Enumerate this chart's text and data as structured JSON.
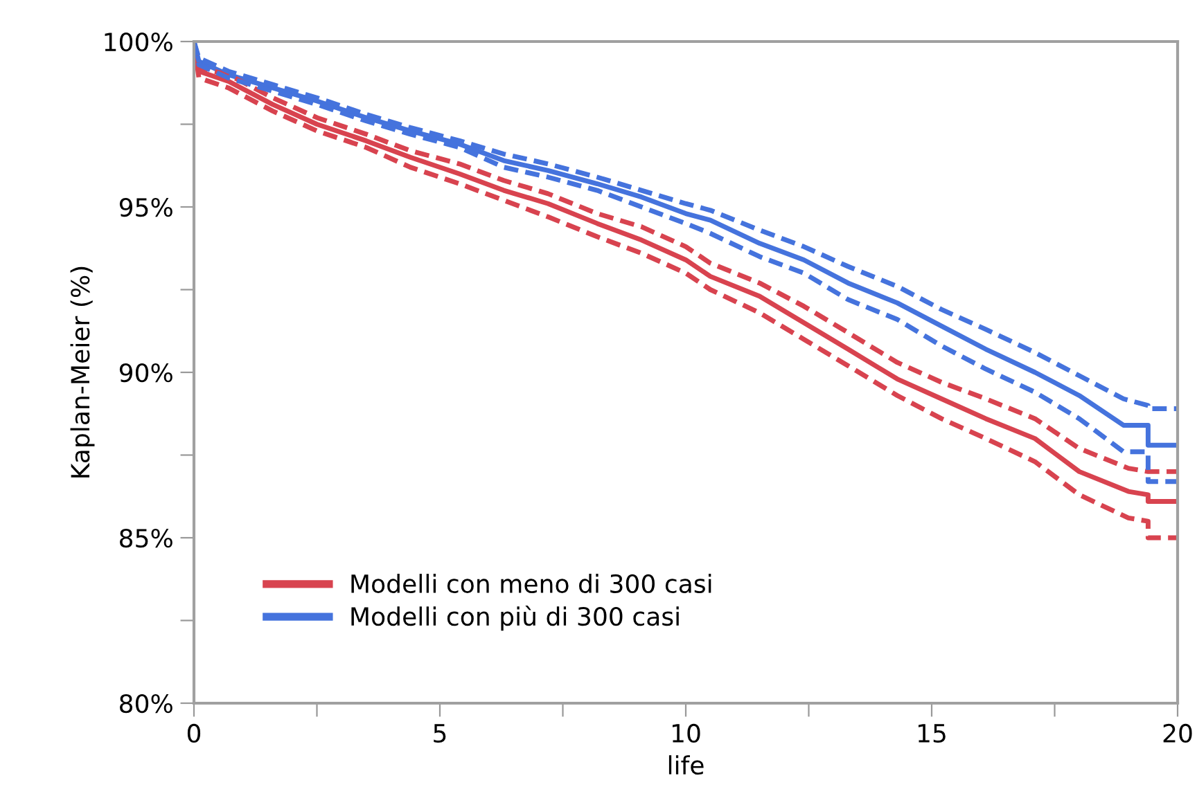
{
  "chart_data": {
    "type": "line",
    "xlabel": "life",
    "ylabel": "Kaplan-Meier (%)",
    "xlim": [
      0,
      20
    ],
    "ylim": [
      80,
      100
    ],
    "xticks": [
      0,
      {
        "value": 2.5,
        "label": null
      },
      5,
      {
        "value": 7.5,
        "label": null
      },
      10,
      {
        "value": 12.5,
        "label": null
      },
      15,
      {
        "value": 17.5,
        "label": null
      },
      20
    ],
    "yticks": [
      {
        "value": 80,
        "label": "80%"
      },
      {
        "value": 82.5,
        "label": null
      },
      {
        "value": 85,
        "label": "85%"
      },
      {
        "value": 87.5,
        "label": null
      },
      {
        "value": 90,
        "label": "90%"
      },
      {
        "value": 92.5,
        "label": null
      },
      {
        "value": 95,
        "label": "95%"
      },
      {
        "value": 97.5,
        "label": null
      },
      {
        "value": 100,
        "label": "100%"
      }
    ],
    "grid": false,
    "legend": "bottom left",
    "series": [
      {
        "name": "Modelli con meno di 300 casi",
        "color": "#d8434f",
        "line_style": "solid",
        "x": [
          0,
          0.1,
          0.7,
          1.6,
          2.5,
          3.5,
          4.4,
          5.4,
          6.3,
          7.2,
          8.2,
          9.1,
          10,
          10.5,
          11.5,
          12.4,
          13.3,
          14.3,
          15.2,
          16.1,
          17.1,
          18,
          19,
          19.4,
          19.4,
          20
        ],
        "values": [
          100,
          99.1,
          98.8,
          98.1,
          97.5,
          97.0,
          96.5,
          96.0,
          95.5,
          95.1,
          94.5,
          94.0,
          93.4,
          92.9,
          92.3,
          91.5,
          90.7,
          89.8,
          89.2,
          88.6,
          88.0,
          87.0,
          86.4,
          86.3,
          86.1,
          86.1
        ]
      },
      {
        "name": "Modelli con più di 300 casi",
        "color": "#4573dd",
        "line_style": "solid",
        "x": [
          0,
          0.1,
          0.7,
          1.6,
          2.5,
          3.5,
          4.4,
          5.4,
          6.3,
          7.2,
          8.2,
          9.1,
          10,
          10.5,
          11.5,
          12.4,
          13.3,
          14.3,
          15.2,
          16.1,
          17.1,
          18,
          18.9,
          19.4,
          19.4,
          20
        ],
        "values": [
          100,
          99.4,
          99.0,
          98.6,
          98.2,
          97.7,
          97.3,
          96.9,
          96.4,
          96.1,
          95.7,
          95.3,
          94.8,
          94.6,
          93.9,
          93.4,
          92.7,
          92.1,
          91.4,
          90.7,
          90.0,
          89.3,
          88.4,
          88.4,
          87.8,
          87.8
        ]
      },
      {
        "color": "#d8434f",
        "line_style": "dashed",
        "x": [
          0,
          0.1,
          0.7,
          1.6,
          2.5,
          3.5,
          4.4,
          5.4,
          6.3,
          7.2,
          8.2,
          9.1,
          10,
          10.5,
          11.5,
          12.4,
          13.3,
          14.3,
          15.2,
          16.1,
          17.1,
          18,
          19,
          19.4,
          19.4,
          20
        ],
        "values": [
          100,
          99.2,
          99.0,
          98.3,
          97.7,
          97.2,
          96.7,
          96.3,
          95.8,
          95.4,
          94.8,
          94.4,
          93.8,
          93.3,
          92.7,
          92.0,
          91.2,
          90.3,
          89.7,
          89.2,
          88.6,
          87.7,
          87.1,
          87.0,
          87.0,
          87.0
        ]
      },
      {
        "color": "#d8434f",
        "line_style": "dashed",
        "x": [
          0,
          0.1,
          0.7,
          1.6,
          2.5,
          3.5,
          4.4,
          5.4,
          6.3,
          7.2,
          8.2,
          9.1,
          10,
          10.5,
          11.5,
          12.4,
          13.3,
          14.3,
          15.2,
          16.1,
          17.1,
          18,
          19,
          19.4,
          19.4,
          20
        ],
        "values": [
          100,
          98.9,
          98.6,
          97.9,
          97.3,
          96.8,
          96.2,
          95.7,
          95.2,
          94.7,
          94.1,
          93.6,
          93.0,
          92.5,
          91.8,
          91.0,
          90.2,
          89.3,
          88.6,
          88.0,
          87.3,
          86.3,
          85.6,
          85.5,
          85.0,
          85.0
        ]
      },
      {
        "color": "#4573dd",
        "line_style": "dashed",
        "x": [
          0,
          0.1,
          0.7,
          1.6,
          2.5,
          3.5,
          4.4,
          5.4,
          6.3,
          7.2,
          8.2,
          9.1,
          10,
          10.5,
          11.5,
          12.4,
          13.3,
          14.3,
          15.2,
          16.1,
          17.1,
          18,
          18.9,
          19.4,
          19.4,
          20
        ],
        "values": [
          100,
          99.5,
          99.1,
          98.7,
          98.3,
          97.8,
          97.4,
          97.0,
          96.6,
          96.3,
          95.9,
          95.5,
          95.1,
          94.9,
          94.3,
          93.8,
          93.2,
          92.6,
          91.9,
          91.3,
          90.6,
          89.9,
          89.2,
          89.0,
          88.9,
          88.9
        ]
      },
      {
        "color": "#4573dd",
        "line_style": "dashed",
        "x": [
          0,
          0.1,
          0.7,
          1.6,
          2.5,
          3.5,
          4.4,
          5.4,
          6.3,
          7.2,
          8.2,
          9.1,
          10,
          10.5,
          11.5,
          12.4,
          13.3,
          14.3,
          15.2,
          16.1,
          17.1,
          18,
          18.9,
          19.4,
          19.4,
          20
        ],
        "values": [
          100,
          99.3,
          98.9,
          98.5,
          98.1,
          97.6,
          97.2,
          96.8,
          96.2,
          95.9,
          95.5,
          95.0,
          94.5,
          94.2,
          93.5,
          93.0,
          92.2,
          91.6,
          90.8,
          90.1,
          89.4,
          88.6,
          87.6,
          87.6,
          86.7,
          86.7
        ]
      }
    ]
  }
}
